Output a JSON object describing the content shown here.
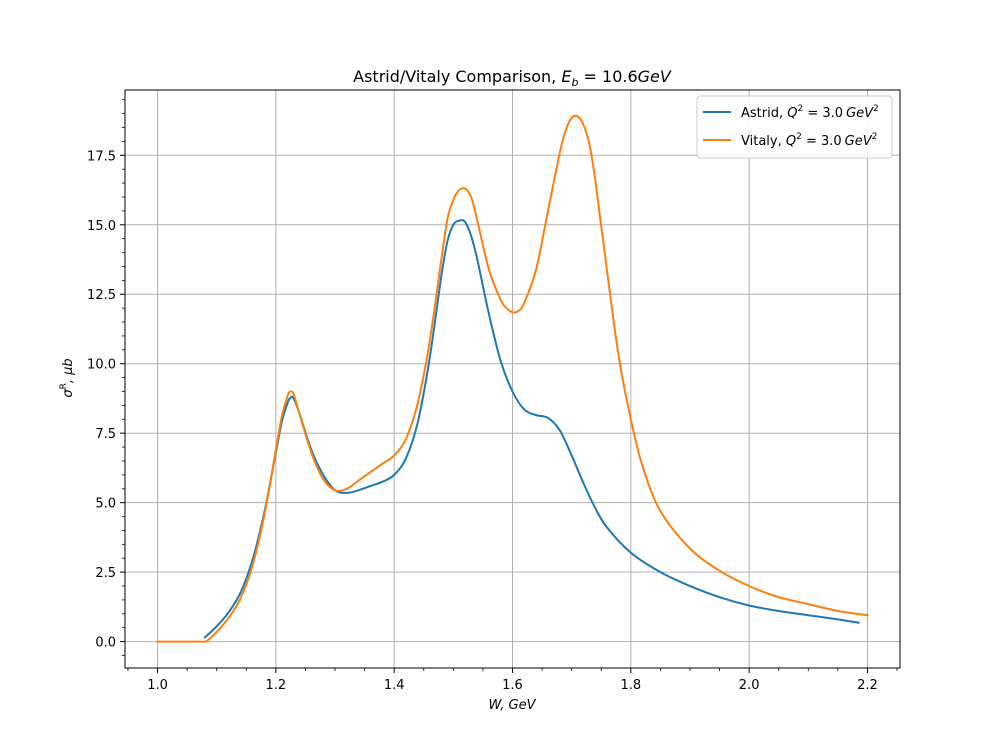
{
  "chart_data": {
    "type": "line",
    "title": "Astrid/Vitaly Comparison, E_b = 10.6GeV",
    "title_parts": {
      "text": "Astrid/Vitaly Comparison, ",
      "sym": "E",
      "sub": "b",
      "rest": " = 10.6",
      "unit": "GeV"
    },
    "xlabel": "W, GeV",
    "ylabel": "σ^R, μb",
    "ylabel_parts": {
      "sym": "σ",
      "sup": "R",
      "rest": ", μb"
    },
    "xlim": [
      0.945,
      2.255
    ],
    "ylim": [
      -0.95,
      19.85
    ],
    "xticks": [
      1.0,
      1.2,
      1.4,
      1.6,
      1.8,
      2.0,
      2.2
    ],
    "xtick_labels": [
      "1.0",
      "1.2",
      "1.4",
      "1.6",
      "1.8",
      "2.0",
      "2.2"
    ],
    "yticks": [
      0.0,
      2.5,
      5.0,
      7.5,
      10.0,
      12.5,
      15.0,
      17.5
    ],
    "ytick_labels": [
      "0.0",
      "2.5",
      "5.0",
      "7.5",
      "10.0",
      "12.5",
      "15.0",
      "17.5"
    ],
    "grid": true,
    "legend_position": "top-right",
    "series": [
      {
        "name": "Astrid, Q^2 = 3.0 GeV^2",
        "label_parts": {
          "text": "Astrid, ",
          "sym": "Q",
          "sup": "2",
          "rest": " = 3.0",
          "unit": "GeV",
          "unit_sup": "2"
        },
        "color": "#1f77b4",
        "x": [
          1.08,
          1.1,
          1.12,
          1.14,
          1.16,
          1.18,
          1.2,
          1.21,
          1.22,
          1.225,
          1.23,
          1.24,
          1.26,
          1.28,
          1.3,
          1.32,
          1.34,
          1.36,
          1.38,
          1.4,
          1.42,
          1.44,
          1.46,
          1.48,
          1.49,
          1.5,
          1.51,
          1.52,
          1.53,
          1.54,
          1.56,
          1.58,
          1.6,
          1.62,
          1.64,
          1.66,
          1.68,
          1.7,
          1.72,
          1.74,
          1.76,
          1.8,
          1.85,
          1.9,
          1.95,
          2.0,
          2.05,
          2.1,
          2.15,
          2.185
        ],
        "y": [
          0.15,
          0.55,
          1.05,
          1.75,
          2.9,
          4.6,
          6.8,
          7.9,
          8.6,
          8.78,
          8.75,
          8.2,
          6.9,
          6.0,
          5.45,
          5.35,
          5.45,
          5.6,
          5.75,
          6.0,
          6.6,
          7.9,
          10.2,
          13.2,
          14.4,
          15.0,
          15.15,
          15.1,
          14.6,
          13.8,
          11.8,
          10.1,
          9.0,
          8.35,
          8.15,
          8.05,
          7.6,
          6.7,
          5.7,
          4.8,
          4.1,
          3.2,
          2.5,
          2.0,
          1.6,
          1.3,
          1.1,
          0.95,
          0.8,
          0.68
        ]
      },
      {
        "name": "Vitaly, Q^2 = 3.0 GeV^2",
        "label_parts": {
          "text": "Vitaly, ",
          "sym": "Q",
          "sup": "2",
          "rest": " = 3.0",
          "unit": "GeV",
          "unit_sup": "2"
        },
        "color": "#ff7f0e",
        "x": [
          1.0,
          1.02,
          1.04,
          1.06,
          1.08,
          1.085,
          1.1,
          1.12,
          1.14,
          1.16,
          1.18,
          1.2,
          1.21,
          1.22,
          1.225,
          1.23,
          1.24,
          1.26,
          1.28,
          1.3,
          1.32,
          1.34,
          1.36,
          1.38,
          1.4,
          1.42,
          1.44,
          1.46,
          1.48,
          1.49,
          1.5,
          1.51,
          1.52,
          1.53,
          1.54,
          1.56,
          1.58,
          1.59,
          1.6,
          1.61,
          1.62,
          1.64,
          1.66,
          1.68,
          1.69,
          1.7,
          1.71,
          1.72,
          1.73,
          1.74,
          1.76,
          1.78,
          1.8,
          1.82,
          1.85,
          1.9,
          1.95,
          2.0,
          2.05,
          2.1,
          2.15,
          2.2
        ],
        "y": [
          0.0,
          0.0,
          0.0,
          0.0,
          0.0,
          0.05,
          0.35,
          0.85,
          1.55,
          2.7,
          4.5,
          6.9,
          8.1,
          8.85,
          9.0,
          8.9,
          8.2,
          6.8,
          5.85,
          5.45,
          5.5,
          5.8,
          6.1,
          6.4,
          6.7,
          7.3,
          8.6,
          10.8,
          13.8,
          15.2,
          15.9,
          16.25,
          16.3,
          16.0,
          15.2,
          13.4,
          12.3,
          12.0,
          11.85,
          11.9,
          12.2,
          13.4,
          15.5,
          17.6,
          18.4,
          18.85,
          18.9,
          18.6,
          17.9,
          16.6,
          13.3,
          10.2,
          8.0,
          6.3,
          4.7,
          3.35,
          2.55,
          2.0,
          1.6,
          1.35,
          1.1,
          0.95
        ]
      }
    ]
  }
}
